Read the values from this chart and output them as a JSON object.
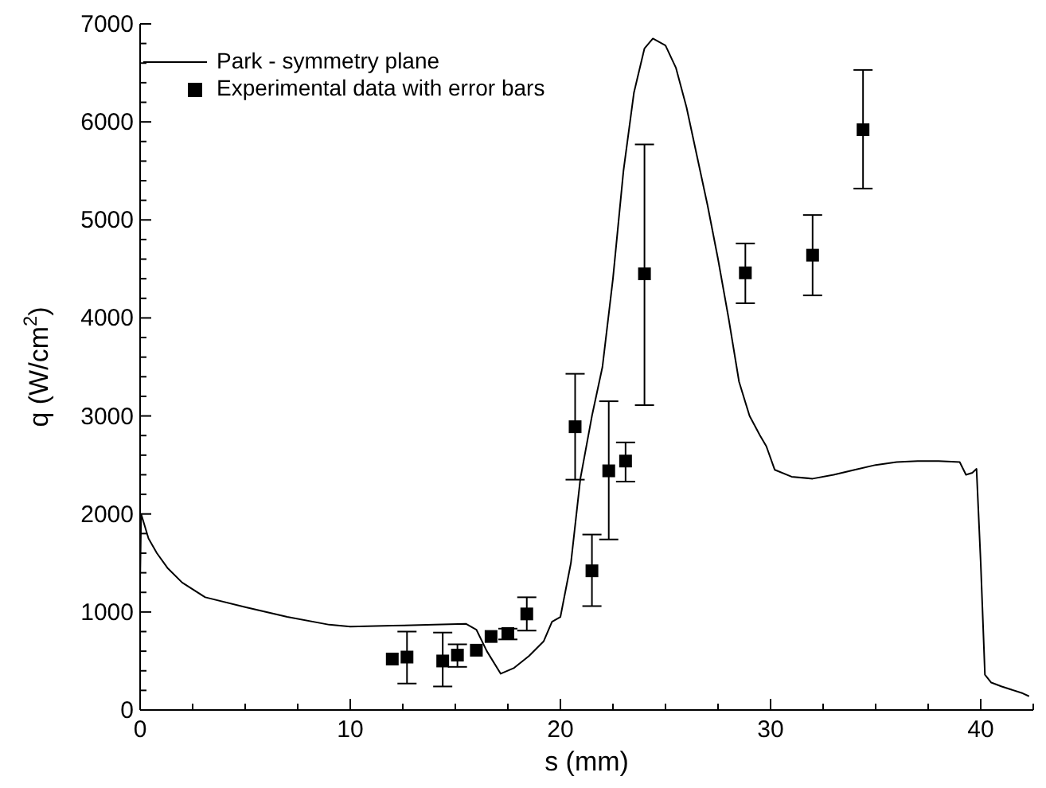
{
  "chart_data": {
    "type": "line",
    "xlabel": "s (mm)",
    "ylabel": "q (W/cm$^{2}$)",
    "xlim": [
      0,
      42.5
    ],
    "ylim": [
      0,
      7000
    ],
    "xticks": [
      0,
      {
        "value": 2.5,
        "label": null
      },
      {
        "value": 5,
        "label": null
      },
      {
        "value": 7.5,
        "label": null
      },
      10,
      {
        "value": 12.5,
        "label": null
      },
      {
        "value": 15,
        "label": null
      },
      {
        "value": 17.5,
        "label": null
      },
      20,
      {
        "value": 22.5,
        "label": null
      },
      {
        "value": 25,
        "label": null
      },
      {
        "value": 27.5,
        "label": null
      },
      30,
      {
        "value": 32.5,
        "label": null
      },
      {
        "value": 35,
        "label": null
      },
      {
        "value": 37.5,
        "label": null
      },
      40,
      {
        "value": 42.5,
        "label": null
      }
    ],
    "yticks": [
      0,
      {
        "value": 200,
        "label": null
      },
      {
        "value": 400,
        "label": null
      },
      {
        "value": 600,
        "label": null
      },
      {
        "value": 800,
        "label": null
      },
      1000,
      {
        "value": 1200,
        "label": null
      },
      {
        "value": 1400,
        "label": null
      },
      {
        "value": 1600,
        "label": null
      },
      {
        "value": 1800,
        "label": null
      },
      2000,
      {
        "value": 2200,
        "label": null
      },
      {
        "value": 2400,
        "label": null
      },
      {
        "value": 2600,
        "label": null
      },
      {
        "value": 2800,
        "label": null
      },
      3000,
      {
        "value": 3200,
        "label": null
      },
      {
        "value": 3400,
        "label": null
      },
      {
        "value": 3600,
        "label": null
      },
      {
        "value": 3800,
        "label": null
      },
      4000,
      {
        "value": 4200,
        "label": null
      },
      {
        "value": 4400,
        "label": null
      },
      {
        "value": 4600,
        "label": null
      },
      {
        "value": 4800,
        "label": null
      },
      5000,
      {
        "value": 5200,
        "label": null
      },
      {
        "value": 5400,
        "label": null
      },
      {
        "value": 5600,
        "label": null
      },
      {
        "value": 5800,
        "label": null
      },
      6000,
      {
        "value": 6200,
        "label": null
      },
      {
        "value": 6400,
        "label": null
      },
      {
        "value": 6600,
        "label": null
      },
      {
        "value": 6800,
        "label": null
      },
      7000
    ],
    "grid": false,
    "legend": "top left",
    "series": [
      {
        "name": "Park - symmetry plane",
        "color": "#000000",
        "marker": "none",
        "line_style": "solid",
        "x": [
          0,
          0.05,
          0.4,
          0.8,
          1.3,
          2,
          3.1,
          5,
          7,
          9,
          10,
          12,
          14,
          15.5,
          16,
          16.5,
          17.16,
          17.8,
          18.5,
          19.2,
          19.6,
          20,
          20.5,
          20.95,
          21.5,
          22,
          22.5,
          23,
          23.5,
          24,
          24.4,
          25,
          25.5,
          26,
          26.5,
          27,
          27.5,
          28,
          28.5,
          29,
          29.5,
          29.8,
          30.2,
          31,
          32,
          33,
          34,
          35,
          36,
          37,
          38,
          39,
          39.3,
          39.6,
          39.8,
          40,
          40.2,
          40.5,
          41,
          42,
          42.3
        ],
        "values": [
          1300,
          2000,
          1750,
          1600,
          1450,
          1300,
          1150,
          1050,
          950,
          870,
          850,
          860,
          870,
          880,
          820,
          600,
          370,
          430,
          550,
          700,
          900,
          950,
          1500,
          2360,
          3000,
          3500,
          4400,
          5500,
          6300,
          6750,
          6850,
          6780,
          6550,
          6150,
          5650,
          5150,
          4600,
          4000,
          3350,
          3000,
          2800,
          2690,
          2450,
          2380,
          2360,
          2400,
          2450,
          2500,
          2530,
          2540,
          2540,
          2530,
          2400,
          2420,
          2460,
          1500,
          360,
          280,
          240,
          170,
          140
        ]
      },
      {
        "name": "Experimental data with error bars",
        "type": "scatter",
        "color": "#000000",
        "marker": "square",
        "x": [
          12,
          12.7,
          14.4,
          15.1,
          16,
          16.7,
          17.5,
          18.4,
          20.7,
          21.5,
          22.3,
          23.1,
          24,
          28.8,
          32,
          34.4
        ],
        "values": [
          520,
          540,
          500,
          560,
          610,
          750,
          780,
          980,
          2890,
          1420,
          2440,
          2540,
          4450,
          4460,
          4640,
          5920
        ],
        "errors": [
          null,
          [
            270,
            800
          ],
          [
            240,
            790
          ],
          [
            440,
            670
          ],
          null,
          null,
          [
            720,
            830
          ],
          [
            810,
            1150
          ],
          [
            2350,
            3430
          ],
          [
            1060,
            1790
          ],
          [
            1740,
            3150
          ],
          [
            2330,
            2730
          ],
          [
            3110,
            5770
          ],
          [
            4150,
            4760
          ],
          [
            4230,
            5050
          ],
          [
            5320,
            6530
          ]
        ]
      }
    ]
  }
}
